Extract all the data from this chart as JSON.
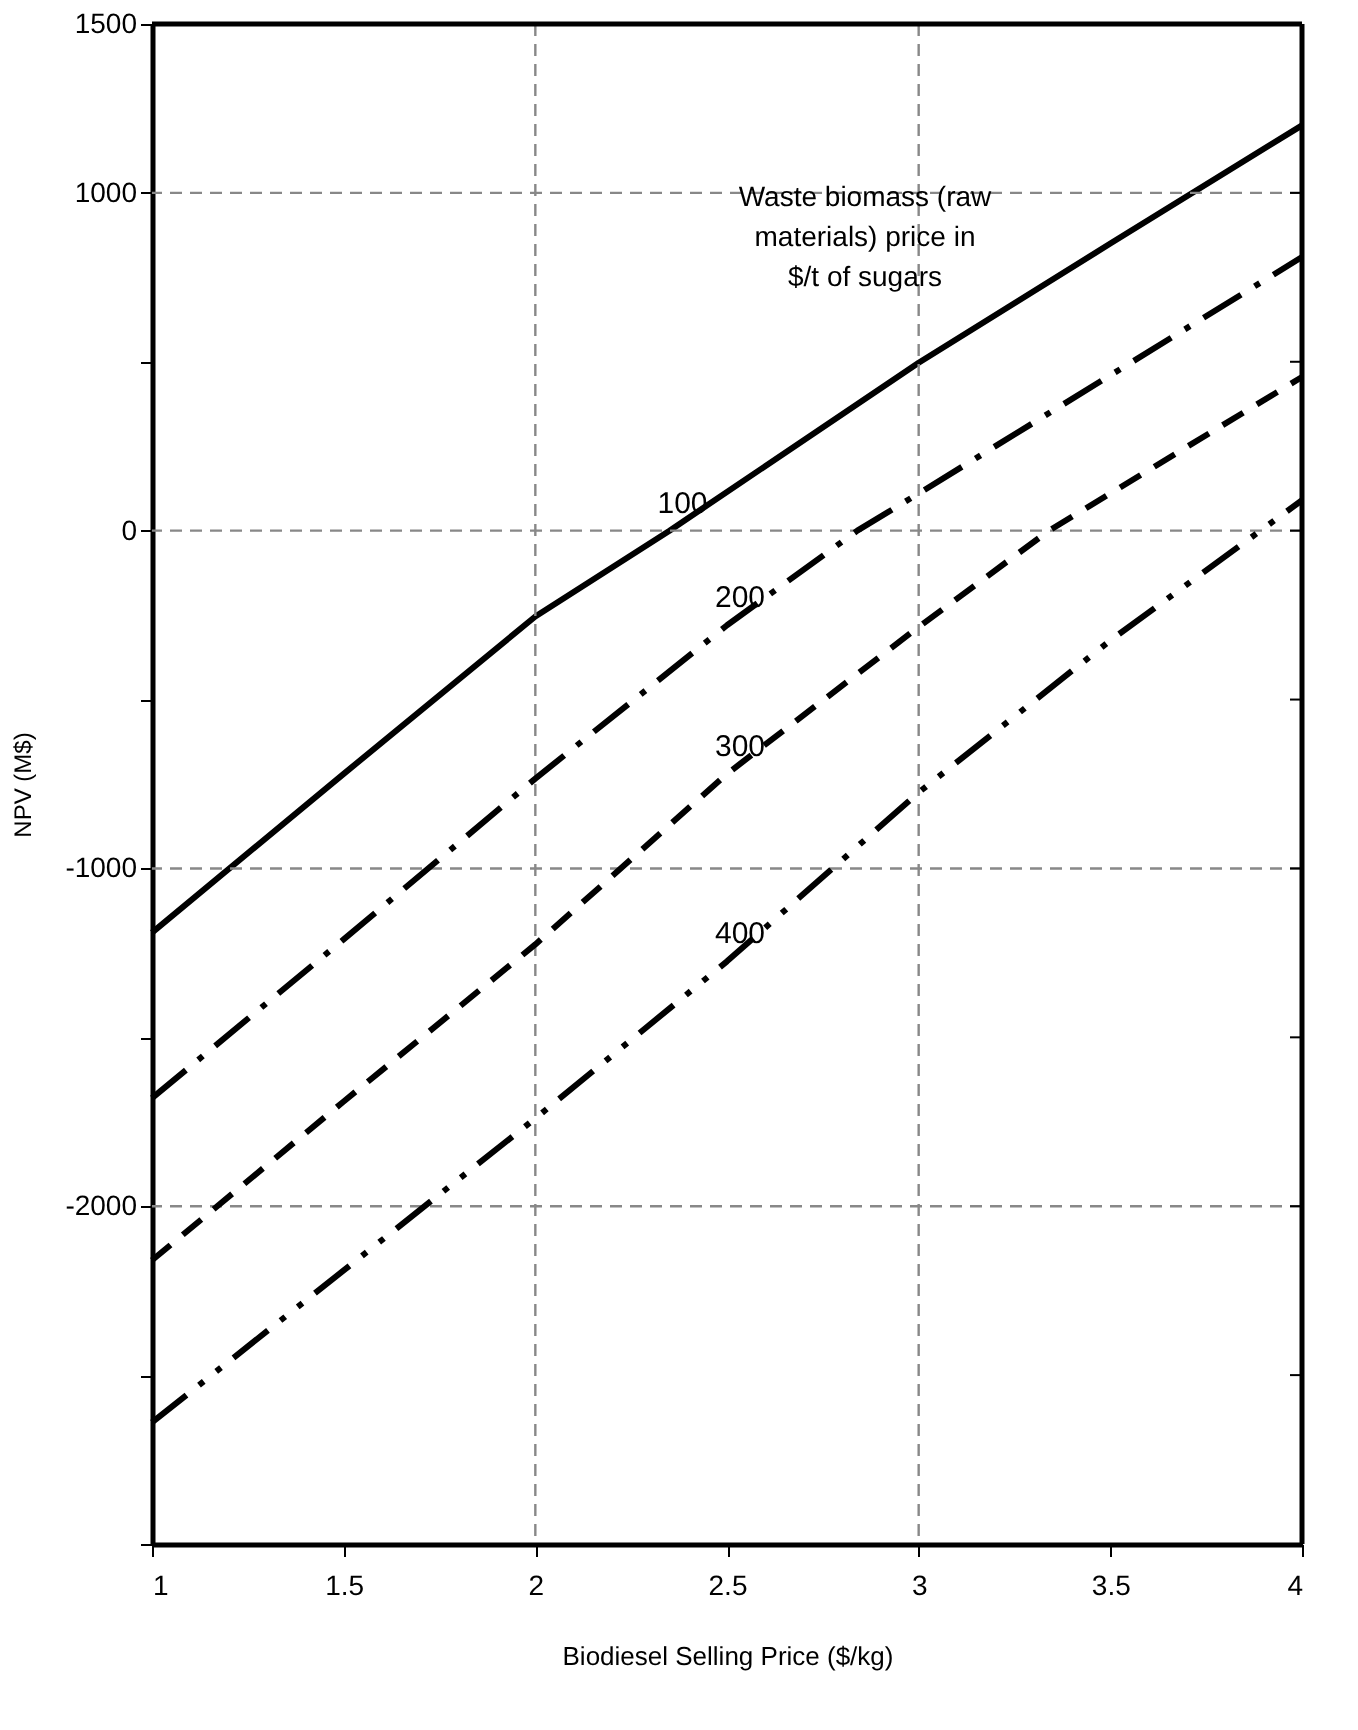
{
  "chart_data": {
    "type": "line",
    "xlabel": "Biodiesel Selling Price ($/kg)",
    "ylabel": "NPV (M$)",
    "legend_title": "Waste biomass (raw materials) price in $/t of sugars",
    "xlim": [
      1,
      4
    ],
    "xticks": [
      1,
      1.5,
      2,
      2.5,
      3,
      3.5,
      4
    ],
    "ylim": [
      -3000,
      1500
    ],
    "yticks": [
      {
        "value": -3000,
        "label": null
      },
      {
        "value": -2500,
        "label": null
      },
      -2000,
      {
        "value": -1500,
        "label": null
      },
      -1000,
      {
        "value": -500,
        "label": null
      },
      0,
      {
        "value": 500,
        "label": null
      },
      1000,
      1500
    ],
    "grid": true,
    "marker": "none",
    "series": [
      {
        "name": "100",
        "color": "#000000",
        "line_style": "solid",
        "x": [
          1,
          1.5,
          2,
          2.35,
          3,
          3.5,
          4
        ],
        "values": [
          -1190,
          -720,
          -254,
          0,
          497,
          850,
          1200
        ]
      },
      {
        "name": "200",
        "color": "#000000",
        "line_style": "dashdot",
        "x": [
          1,
          1.5,
          2,
          2.5,
          2.84,
          3,
          3.5,
          4
        ],
        "values": [
          -1680,
          -1210,
          -734,
          -280,
          0,
          110,
          460,
          810
        ]
      },
      {
        "name": "300",
        "color": "#000000",
        "line_style": "dashed",
        "x": [
          1,
          1.5,
          2,
          2.5,
          3,
          3.34,
          4
        ],
        "values": [
          -2160,
          -1690,
          -1225,
          -720,
          -285,
          0,
          455
        ]
      },
      {
        "name": "400",
        "color": "#000000",
        "line_style": "dashdotdot",
        "x": [
          1,
          1.5,
          2,
          2.5,
          3,
          3.5,
          4
        ],
        "values": [
          -2640,
          -2190,
          -1740,
          -1275,
          -775,
          -325,
          90
        ]
      }
    ]
  }
}
